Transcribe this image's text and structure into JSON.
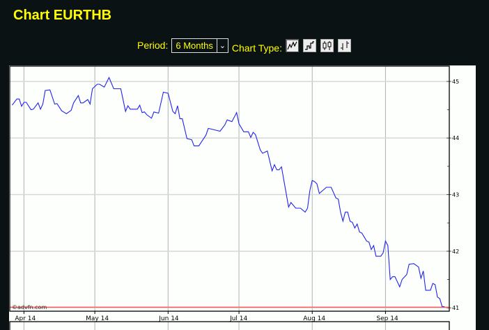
{
  "header": {
    "title": "Chart EURTHB"
  },
  "controls": {
    "period_label": "Period:",
    "period_value": "6 Months",
    "chart_type_label": "Chart Type:",
    "chart_types": [
      {
        "icon": "line-chart-icon",
        "active": true
      },
      {
        "icon": "step-chart-icon",
        "active": false
      },
      {
        "icon": "candlestick-chart-icon",
        "active": false
      },
      {
        "icon": "ohlc-bar-chart-icon",
        "active": false
      }
    ]
  },
  "chart_data": {
    "type": "line",
    "title": "",
    "watermark": "©advfn.com",
    "xlim": [
      "2014-03-26",
      "2014-09-28"
    ],
    "ylim": [
      40.94,
      45.27
    ],
    "yticks": [
      41,
      42,
      43,
      44,
      45
    ],
    "yminor": [
      41.5,
      42.5,
      43.5,
      44.5
    ],
    "xticks": [
      {
        "date": "2014-04-01",
        "label": "Apr 14"
      },
      {
        "date": "2014-05-01",
        "label": "May 14"
      },
      {
        "date": "2014-06-01",
        "label": "Jun 14"
      },
      {
        "date": "2014-07-01",
        "label": "Jul 14"
      },
      {
        "date": "2014-08-01",
        "label": "Aug 14"
      },
      {
        "date": "2014-09-01",
        "label": "Sep 14"
      }
    ],
    "grid": true,
    "y_axis_position": "right",
    "line_color": "#2222ee",
    "reference_line": {
      "value": 41.01,
      "color": "#ff6060"
    },
    "series": [
      {
        "x": [
          "2014-03-27",
          "2014-03-29",
          "2014-03-30",
          "2014-03-31",
          "2014-04-01",
          "2014-04-02",
          "2014-04-04",
          "2014-04-05",
          "2014-04-07",
          "2014-04-08",
          "2014-04-09",
          "2014-04-10",
          "2014-04-12",
          "2014-04-14",
          "2014-04-15",
          "2014-04-17",
          "2014-04-19",
          "2014-04-21",
          "2014-04-22",
          "2014-04-24",
          "2014-04-25",
          "2014-04-26",
          "2014-04-28",
          "2014-04-29",
          "2014-04-30",
          "2014-05-02",
          "2014-05-03",
          "2014-05-05",
          "2014-05-07",
          "2014-05-09",
          "2014-05-12",
          "2014-05-14",
          "2014-05-15",
          "2014-05-16",
          "2014-05-19",
          "2014-05-20",
          "2014-05-21",
          "2014-05-22",
          "2014-05-23",
          "2014-05-25",
          "2014-05-26",
          "2014-05-28",
          "2014-05-30",
          "2014-06-01",
          "2014-06-03",
          "2014-06-04",
          "2014-06-05",
          "2014-06-06",
          "2014-06-07",
          "2014-06-09",
          "2014-06-11",
          "2014-06-12",
          "2014-06-14",
          "2014-06-17",
          "2014-06-18",
          "2014-06-20",
          "2014-06-23",
          "2014-06-25",
          "2014-06-26",
          "2014-06-28",
          "2014-06-30",
          "2014-07-01",
          "2014-07-03",
          "2014-07-05",
          "2014-07-06",
          "2014-07-07",
          "2014-07-08",
          "2014-07-10",
          "2014-07-11",
          "2014-07-13",
          "2014-07-15",
          "2014-07-16",
          "2014-07-17",
          "2014-07-18",
          "2014-07-19",
          "2014-07-22",
          "2014-07-23",
          "2014-07-25",
          "2014-07-27",
          "2014-07-29",
          "2014-07-30",
          "2014-07-31",
          "2014-08-01",
          "2014-08-02",
          "2014-08-03",
          "2014-08-04",
          "2014-08-07",
          "2014-08-09",
          "2014-08-11",
          "2014-08-12",
          "2014-08-13",
          "2014-08-14",
          "2014-08-15",
          "2014-08-16",
          "2014-08-17",
          "2014-08-18",
          "2014-08-19",
          "2014-08-20",
          "2014-08-21",
          "2014-08-22",
          "2014-08-24",
          "2014-08-25",
          "2014-08-26",
          "2014-08-27",
          "2014-08-28",
          "2014-08-30",
          "2014-08-31",
          "2014-09-01",
          "2014-09-02",
          "2014-09-03",
          "2014-09-04",
          "2014-09-05",
          "2014-09-07",
          "2014-09-08",
          "2014-09-10",
          "2014-09-11",
          "2014-09-13",
          "2014-09-15",
          "2014-09-16",
          "2014-09-17",
          "2014-09-18",
          "2014-09-20",
          "2014-09-21",
          "2014-09-22",
          "2014-09-23",
          "2014-09-24",
          "2014-09-25",
          "2014-09-26"
        ],
        "y": [
          44.58,
          44.69,
          44.69,
          44.56,
          44.63,
          44.63,
          44.5,
          44.51,
          44.62,
          44.51,
          44.6,
          44.84,
          44.85,
          44.6,
          44.61,
          44.48,
          44.43,
          44.49,
          44.62,
          44.75,
          44.62,
          44.62,
          44.68,
          44.6,
          44.87,
          44.95,
          44.95,
          44.9,
          45.07,
          44.87,
          44.87,
          44.47,
          44.57,
          44.51,
          44.51,
          44.58,
          44.45,
          44.46,
          44.41,
          44.35,
          44.46,
          44.44,
          44.81,
          44.79,
          44.47,
          44.43,
          44.57,
          44.34,
          44.34,
          43.99,
          43.97,
          43.86,
          43.86,
          44.05,
          44.17,
          44.15,
          44.12,
          44.23,
          44.32,
          44.29,
          44.45,
          44.25,
          44.11,
          44.11,
          44.01,
          44.1,
          44.06,
          43.79,
          43.73,
          43.77,
          43.42,
          43.53,
          43.44,
          43.44,
          43.49,
          42.78,
          42.86,
          42.76,
          42.76,
          42.69,
          42.76,
          43.07,
          43.25,
          43.23,
          43.19,
          43.02,
          43.13,
          43.13,
          42.94,
          42.92,
          42.69,
          42.53,
          42.69,
          42.69,
          42.53,
          42.51,
          42.41,
          42.48,
          42.34,
          42.32,
          42.18,
          42.16,
          42.03,
          42.1,
          41.91,
          41.91,
          41.97,
          42.18,
          42.1,
          41.5,
          41.55,
          41.55,
          41.37,
          41.5,
          41.59,
          41.77,
          41.78,
          41.72,
          41.52,
          41.65,
          41.31,
          41.31,
          41.43,
          41.41,
          41.19,
          41.16,
          41.02,
          41.02
        ]
      }
    ]
  }
}
